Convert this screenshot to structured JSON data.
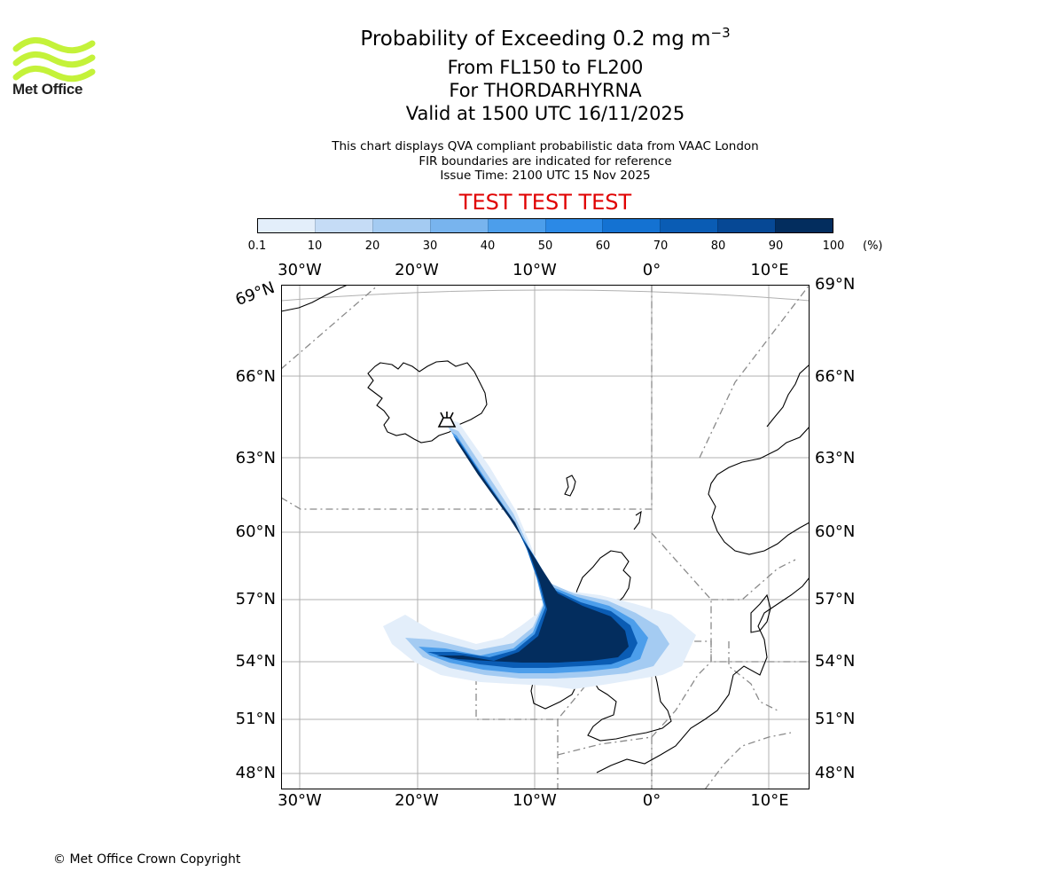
{
  "logo": {
    "icon": "met-office-wave-logo",
    "text": "Met Office",
    "color": "#c4f23a"
  },
  "title": {
    "main": "Probability of Exceeding 0.2 mg m",
    "main_exponent": "−3",
    "line2": "From FL150 to FL200",
    "line3": "For THORDARHYRNA",
    "line4": "Valid at 1500 UTC 16/11/2025"
  },
  "info": {
    "line1": "This chart displays QVA compliant probabilistic data from VAAC London",
    "line2": "FIR boundaries are indicated for reference",
    "line3": "Issue Time: 2100 UTC 15 Nov 2025"
  },
  "test_banner": {
    "text": "TEST TEST TEST",
    "color": "#e00000"
  },
  "colorbar": {
    "ticks": [
      "0.1",
      "10",
      "20",
      "30",
      "40",
      "50",
      "60",
      "70",
      "80",
      "90",
      "100"
    ],
    "unit": "(%)",
    "colors": [
      "#e3eefa",
      "#c5dcf6",
      "#a4cbf2",
      "#78b4ee",
      "#4c9eeb",
      "#2b89e6",
      "#1472d2",
      "#0a5cb4",
      "#064895",
      "#032d5e"
    ]
  },
  "map": {
    "lon_labels": [
      "30°W",
      "20°W",
      "10°W",
      "0°",
      "10°E"
    ],
    "lat_labels_left": [
      "69°N",
      "66°N",
      "63°N",
      "60°N",
      "57°N",
      "54°N",
      "51°N",
      "48°N"
    ],
    "lat_labels_right": [
      "69°N",
      "66°N",
      "63°N",
      "60°N",
      "57°N",
      "54°N",
      "51°N",
      "48°N"
    ],
    "volcano_icon": "volcano-icon",
    "plume_description_type": "ash-probability-plume"
  },
  "copyright": "© Met Office Crown Copyright"
}
